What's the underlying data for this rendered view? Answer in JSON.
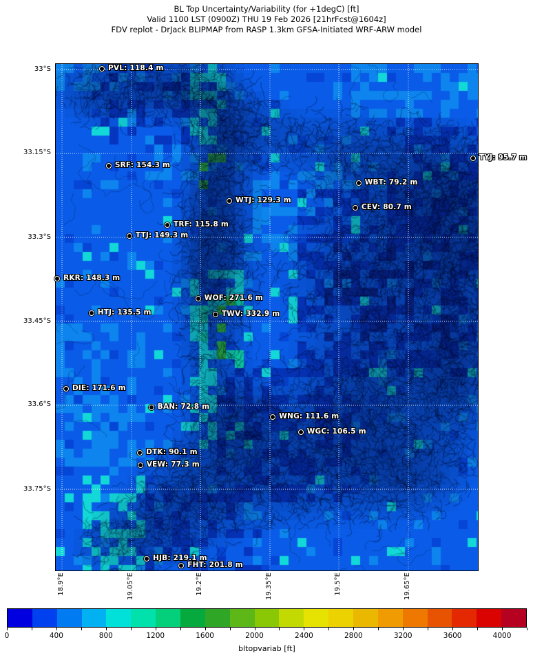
{
  "header": {
    "line1": "BL Top Uncertainty/Variability (for +1degC) [ft]",
    "line2": "Valid 1100 LST (0900Z) THU 19 Feb 2026 [21hrFcst@1604z]",
    "line3": "FDV replot - DrJack BLIPMAP from RASP 1.3km GFSA-Initiated WRF-ARW model"
  },
  "chart_data": {
    "type": "heatmap",
    "title": "BL Top Uncertainty/Variability (for +1degC) [ft]",
    "valid_time": "Valid 1100 LST (0900Z) THU 19 Feb 2026 [21hrFcst@1604z]",
    "model": "FDV replot - DrJack BLIPMAP from RASP 1.3km GFSA-Initiated WRF-ARW model",
    "parameter": "bltopvariab",
    "units": "ft",
    "y_axis": {
      "ticks": [
        {
          "label": "33°S",
          "f": 0.0109
        },
        {
          "label": "33.15°S",
          "f": 0.1766
        },
        {
          "label": "33.3°S",
          "f": 0.3424
        },
        {
          "label": "33.45°S",
          "f": 0.5082
        },
        {
          "label": "33.6°S",
          "f": 0.6739
        },
        {
          "label": "33.75°S",
          "f": 0.8397
        }
      ]
    },
    "x_axis": {
      "ticks": [
        {
          "label": "18.9°E",
          "f": 0.0147
        },
        {
          "label": "19.05°E",
          "f": 0.1794
        },
        {
          "label": "19.2°E",
          "f": 0.3426
        },
        {
          "label": "19.35°E",
          "f": 0.5073
        },
        {
          "label": "19.5°E",
          "f": 0.6704
        },
        {
          "label": "19.65°E",
          "f": 0.8352
        }
      ]
    },
    "colorbar": {
      "label": "bltopvariab [ft]",
      "min": 0,
      "max": 4200,
      "segment_step": 200,
      "tick_step": 200,
      "tick_labels": [
        "0",
        "400",
        "800",
        "1200",
        "1600",
        "2000",
        "2400",
        "2800",
        "3200",
        "3600",
        "4000"
      ],
      "tick_label_values": [
        0,
        400,
        800,
        1200,
        1600,
        2000,
        2400,
        2800,
        3200,
        3600,
        4000
      ],
      "colors": [
        "#0000e0",
        "#0140ef",
        "#017bf2",
        "#01b1f1",
        "#02e0da",
        "#01e1ac",
        "#04d07c",
        "#06a93e",
        "#2fa626",
        "#5cb717",
        "#8ac704",
        "#c3da02",
        "#e6e201",
        "#edd201",
        "#eab801",
        "#ef9b01",
        "#ef7801",
        "#e75301",
        "#e42801",
        "#da0301",
        "#b70121"
      ]
    },
    "stations": [
      {
        "id": "PVL",
        "label": "PVL: 118.4 m",
        "value_m": 118.4,
        "fx": 0.111,
        "fy": 0.011
      },
      {
        "id": "SRF",
        "label": "SRF: 154.3 m",
        "value_m": 154.3,
        "fx": 0.127,
        "fy": 0.202
      },
      {
        "id": "TYJ",
        "label": "TYJ: 95.7 m",
        "value_m": 95.7,
        "fx": 0.99,
        "fy": 0.187
      },
      {
        "id": "WBT",
        "label": "WBT: 79.2 m",
        "value_m": 79.2,
        "fx": 0.719,
        "fy": 0.236
      },
      {
        "id": "WTJ",
        "label": "WTJ: 129.3 m",
        "value_m": 129.3,
        "fx": 0.413,
        "fy": 0.272
      },
      {
        "id": "CEV",
        "label": "CEV: 80.7 m",
        "value_m": 80.7,
        "fx": 0.711,
        "fy": 0.285
      },
      {
        "id": "TRF",
        "label": "TRF: 115.8 m",
        "value_m": 115.8,
        "fx": 0.266,
        "fy": 0.319
      },
      {
        "id": "TTJ",
        "label": "TTJ: 149.3 m",
        "value_m": 149.3,
        "fx": 0.176,
        "fy": 0.341
      },
      {
        "id": "RKR",
        "label": "RKR: 148.3 m",
        "value_m": 148.3,
        "fx": 0.005,
        "fy": 0.425
      },
      {
        "id": "WOF",
        "label": "WOF: 271.6 m",
        "value_m": 271.6,
        "fx": 0.339,
        "fy": 0.465
      },
      {
        "id": "HTJ",
        "label": "HTJ: 135.5 m",
        "value_m": 135.5,
        "fx": 0.086,
        "fy": 0.493
      },
      {
        "id": "TWV",
        "label": "TWV: 332.9 m",
        "value_m": 332.9,
        "fx": 0.38,
        "fy": 0.496
      },
      {
        "id": "DIE",
        "label": "DIE: 171.6 m",
        "value_m": 171.6,
        "fx": 0.026,
        "fy": 0.643
      },
      {
        "id": "BAN",
        "label": "BAN: 72.8 m",
        "value_m": 72.8,
        "fx": 0.228,
        "fy": 0.679
      },
      {
        "id": "WNG",
        "label": "WNG: 111.6 m",
        "value_m": 111.6,
        "fx": 0.516,
        "fy": 0.698
      },
      {
        "id": "WGC",
        "label": "WGC: 106.5 m",
        "value_m": 106.5,
        "fx": 0.582,
        "fy": 0.728
      },
      {
        "id": "DTK",
        "label": "DTK: 90.1 m",
        "value_m": 90.1,
        "fx": 0.201,
        "fy": 0.769
      },
      {
        "id": "VEW",
        "label": "VEW: 77.3 m",
        "value_m": 77.3,
        "fx": 0.202,
        "fy": 0.793
      },
      {
        "id": "HJB",
        "label": "HJB: 219.1 m",
        "value_m": 219.1,
        "fx": 0.217,
        "fy": 0.978
      },
      {
        "id": "FHT",
        "label": "FHT: 201.8 m",
        "value_m": 201.8,
        "fx": 0.299,
        "fy": 0.992
      }
    ]
  }
}
